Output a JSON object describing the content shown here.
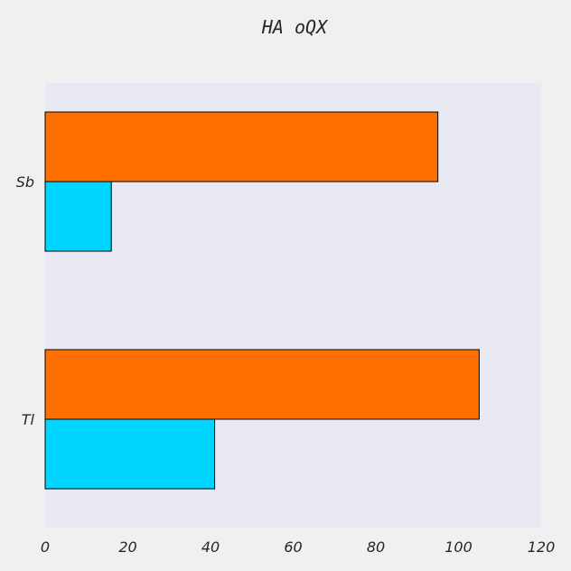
{
  "chart_data": {
    "type": "bar",
    "orientation": "horizontal",
    "title": "HA oQX",
    "categories": [
      "Sb",
      "Tl"
    ],
    "series": [
      {
        "values": [
          16,
          41
        ],
        "color": "#00d5ff"
      },
      {
        "values": [
          95,
          105
        ],
        "color": "#ff6f00"
      }
    ],
    "xlim": [
      0,
      120
    ],
    "xticks": [
      0,
      20,
      40,
      60,
      80,
      100,
      120
    ],
    "xlabel": "",
    "ylabel": "",
    "grid": false,
    "legend": "none",
    "plot_background": "#e9e9f3",
    "figure_background": "#f0f0f0"
  }
}
